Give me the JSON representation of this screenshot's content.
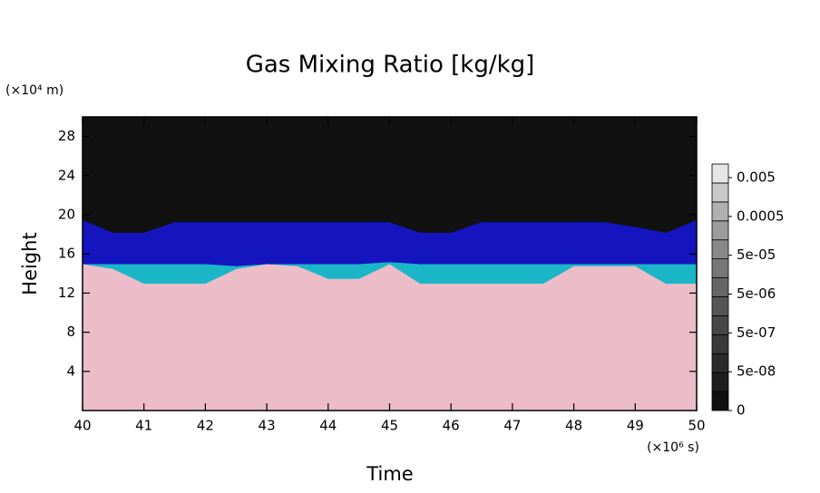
{
  "chart_data": {
    "type": "area",
    "title": "Gas Mixing Ratio [kg/kg]",
    "x_label": "Time",
    "x_unit": "(×10⁶ s)",
    "y_label": "Height",
    "y_unit": "(×10⁴ m)",
    "x": [
      40,
      40.5,
      41,
      41.5,
      42,
      42.5,
      43,
      43.5,
      44,
      44.5,
      45,
      45.5,
      46,
      46.5,
      47,
      47.5,
      48,
      48.5,
      49,
      49.5,
      50
    ],
    "series": [
      {
        "color": "#ecbcc8",
        "values": [
          15,
          14.5,
          13,
          13,
          13,
          14.5,
          15,
          14.8,
          13.5,
          13.5,
          15,
          13,
          13,
          13,
          13,
          13,
          14.8,
          14.8,
          14.8,
          13,
          13
        ]
      },
      {
        "color": "#1ab6c8",
        "values": [
          15,
          15,
          15,
          15,
          15,
          14.8,
          15,
          15,
          15,
          15,
          15.2,
          15,
          15,
          15,
          15,
          15,
          15,
          15,
          15,
          15,
          15
        ]
      },
      {
        "color": "#1515bf",
        "values": [
          19.5,
          18.2,
          18.2,
          19.3,
          19.3,
          19.3,
          19.3,
          19.3,
          19.3,
          19.3,
          19.3,
          18.2,
          18.2,
          19.3,
          19.3,
          19.3,
          19.3,
          19.3,
          18.8,
          18.2,
          19.5
        ]
      },
      {
        "color": "#111111",
        "values": [
          30,
          30,
          30,
          30,
          30,
          30,
          30,
          30,
          30,
          30,
          30,
          30,
          30,
          30,
          30,
          30,
          30,
          30,
          30,
          30,
          30
        ]
      }
    ],
    "xlim": [
      40,
      50
    ],
    "xticks": [
      40,
      41,
      42,
      43,
      44,
      45,
      46,
      47,
      48,
      49,
      50
    ],
    "ylim": [
      0,
      30
    ],
    "yticks": [
      4,
      8,
      12,
      16,
      20,
      24,
      28
    ],
    "colorbar_ticks": [
      0,
      {
        "value": 5e-08,
        "label": "5e-08"
      },
      {
        "value": 5e-07,
        "label": "5e-07"
      },
      {
        "value": 5e-06,
        "label": "5e-06"
      },
      {
        "value": 5e-05,
        "label": "5e-05"
      },
      0.0005,
      0.005
    ],
    "colorbar_colors": [
      "#111111",
      "#1e1e1e",
      "#2b2b2b",
      "#393939",
      "#474747",
      "#565656",
      "#666666",
      "#777777",
      "#898989",
      "#9c9c9c",
      "#b0b0b0",
      "#c9c9c9",
      "#e6e6e6"
    ]
  }
}
